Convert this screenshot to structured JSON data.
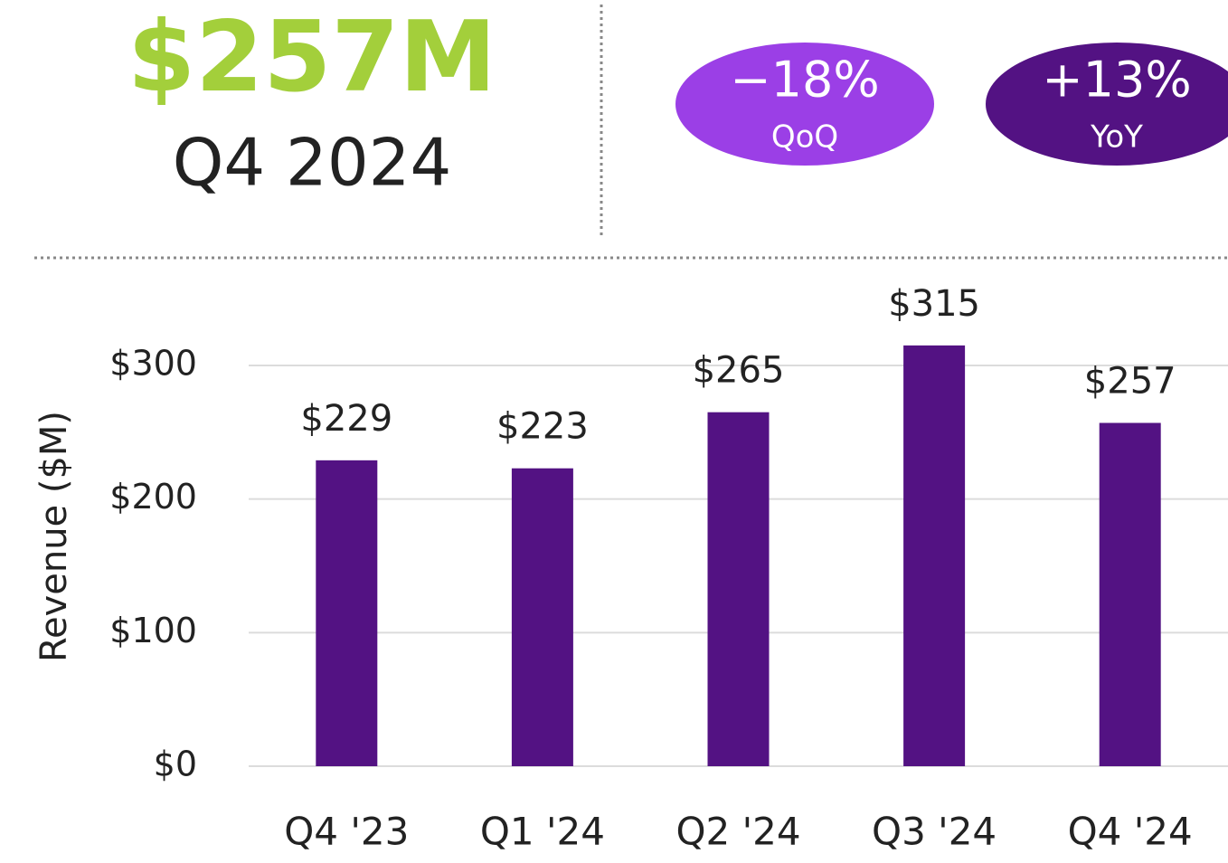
{
  "header": {
    "value": "$257M",
    "period": "Q4 2024"
  },
  "badges": [
    {
      "value": "−18%",
      "label": "QoQ"
    },
    {
      "value": "+13%",
      "label": "YoY"
    }
  ],
  "chart_data": {
    "type": "bar",
    "y_label": "Revenue ($M)",
    "categories": [
      "Q4 '23",
      "Q1 '24",
      "Q2 '24",
      "Q3 '24",
      "Q4 '24"
    ],
    "values": [
      229,
      223,
      265,
      315,
      257
    ],
    "value_labels": [
      "$229",
      "$223",
      "$265",
      "$315",
      "$257"
    ],
    "color": "#531283",
    "ylim": [
      0,
      300
    ],
    "yticks": [
      {
        "value": 0,
        "label": "$0"
      },
      {
        "value": 100,
        "label": "$100"
      },
      {
        "value": 200,
        "label": "$200"
      },
      {
        "value": 300,
        "label": "$300"
      }
    ],
    "grid": true
  }
}
